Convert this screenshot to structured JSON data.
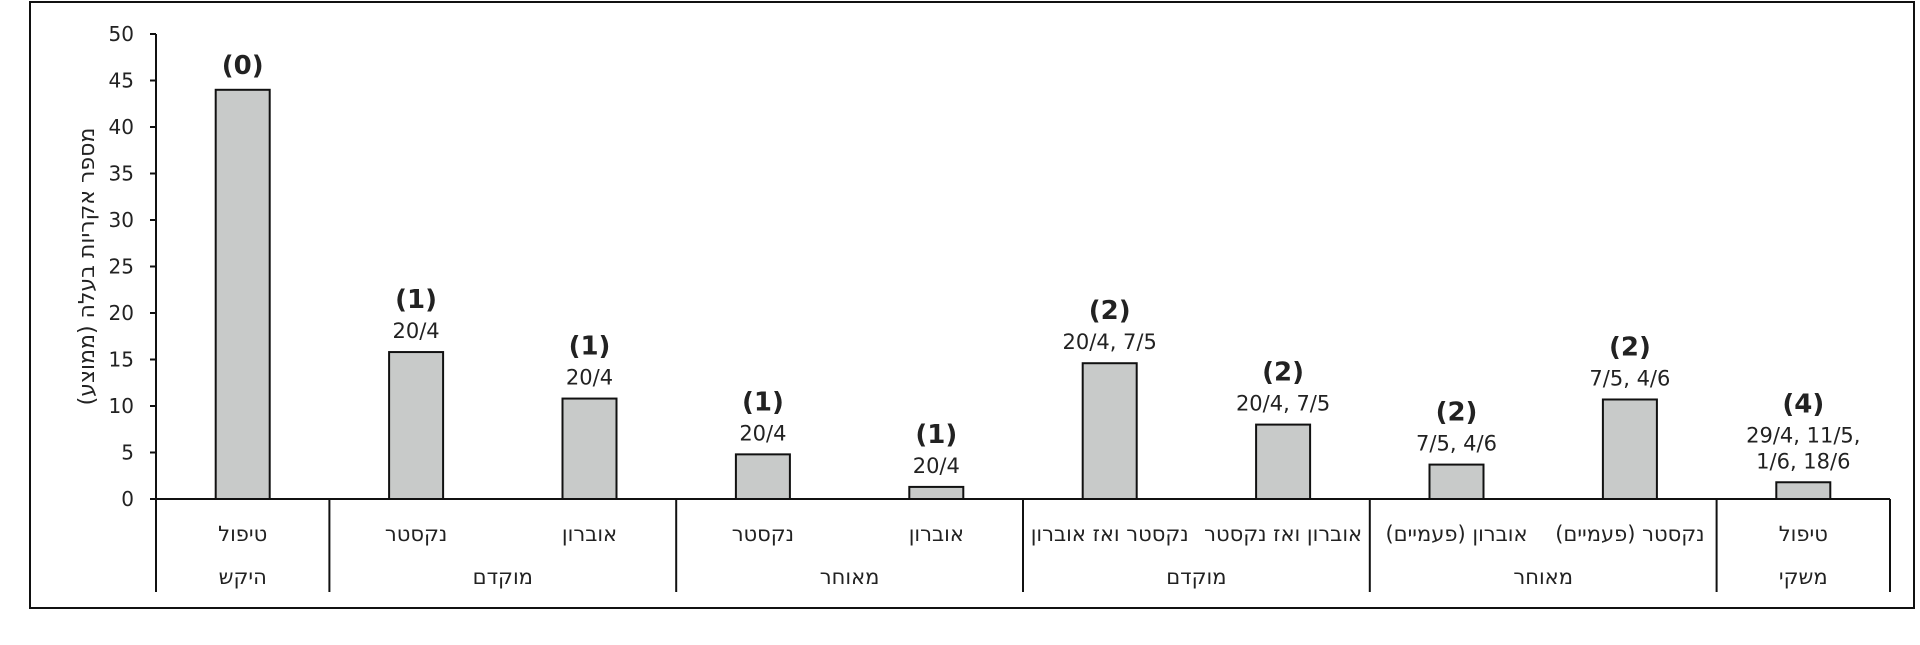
{
  "chart_data": {
    "type": "bar",
    "ylabel": "מספר אקריות בעלה (ממוצע)",
    "ylim": [
      0,
      50
    ],
    "yticks": [
      0,
      5,
      10,
      15,
      20,
      25,
      30,
      35,
      40,
      45,
      50
    ],
    "grid": false,
    "bars": [
      {
        "label": "טיפול",
        "value": 44,
        "count": "(0)",
        "dates": []
      },
      {
        "label": "נקסטר",
        "value": 15.8,
        "count": "(1)",
        "dates": [
          "20/4"
        ]
      },
      {
        "label": "אוברון",
        "value": 10.8,
        "count": "(1)",
        "dates": [
          "20/4"
        ]
      },
      {
        "label": "נקסטר",
        "value": 4.8,
        "count": "(1)",
        "dates": [
          "20/4"
        ]
      },
      {
        "label": "אוברון",
        "value": 1.3,
        "count": "(1)",
        "dates": [
          "20/4"
        ]
      },
      {
        "label": "נקסטר ואז אוברון",
        "value": 14.6,
        "count": "(2)",
        "dates": [
          "20/4, 7/5"
        ]
      },
      {
        "label": "אוברון ואז נקסטר",
        "value": 8,
        "count": "(2)",
        "dates": [
          "20/4, 7/5"
        ]
      },
      {
        "label": "אוברון (פעמיים)",
        "value": 3.7,
        "count": "(2)",
        "dates": [
          "7/5, 4/6"
        ]
      },
      {
        "label": "נקסטר (פעמיים)",
        "value": 10.7,
        "count": "(2)",
        "dates": [
          "7/5, 4/6"
        ]
      },
      {
        "label": "טיפול",
        "value": 1.8,
        "count": "(4)",
        "dates": [
          "29/4, 11/5,",
          "1/6, 18/6"
        ]
      }
    ],
    "groups": [
      {
        "label": "היקש",
        "start": 0,
        "end": 0
      },
      {
        "label": "מוקדם",
        "start": 1,
        "end": 2
      },
      {
        "label": "מאוחר",
        "start": 3,
        "end": 4
      },
      {
        "label": "מוקדם",
        "start": 5,
        "end": 6
      },
      {
        "label": "מאוחר",
        "start": 7,
        "end": 8
      },
      {
        "label": "משקי",
        "start": 9,
        "end": 9
      }
    ],
    "colors": {
      "bar_fill": "#c8cac9",
      "bar_stroke": "#111111",
      "axis": "#111111",
      "frame": "#111111",
      "text": "#222222",
      "background": "#ffffff"
    }
  }
}
